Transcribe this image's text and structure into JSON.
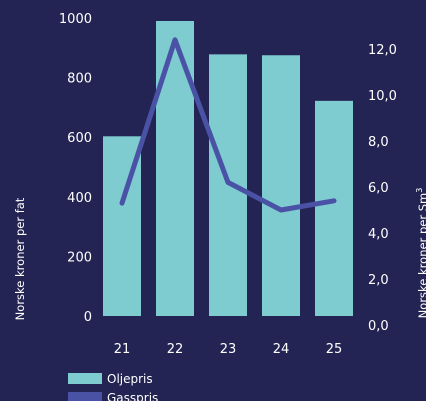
{
  "chart_data": {
    "type": "bar",
    "categories": [
      "21",
      "22",
      "23",
      "24",
      "25"
    ],
    "series": [
      {
        "name": "Oljepris",
        "type": "bar",
        "axis": "left",
        "values": [
          603,
          990,
          878,
          875,
          722
        ]
      },
      {
        "name": "Gasspris",
        "type": "line",
        "axis": "right",
        "values": [
          5.3,
          12.4,
          6.2,
          5.0,
          5.4
        ]
      }
    ],
    "y_left": {
      "label": "Norske kroner per fat",
      "ylim": [
        0,
        1000
      ],
      "ticks": [
        "0",
        "200",
        "400",
        "600",
        "800",
        "1000"
      ]
    },
    "y_right": {
      "label": "Norske kroner per Sm",
      "label_sup": "3",
      "ylim": [
        0,
        12
      ],
      "ticks": [
        "0,0",
        "2,0",
        "4,0",
        "6,0",
        "8,0",
        "10,0",
        "12,0"
      ]
    },
    "legend_position": "bottom-left",
    "grid": false,
    "colors": {
      "background": "#232453",
      "bar": "#7ecbd0",
      "line": "#4a52a6",
      "text": "#ffffff"
    }
  }
}
